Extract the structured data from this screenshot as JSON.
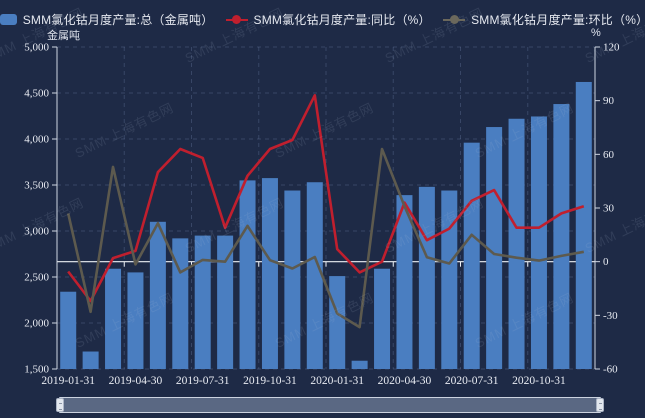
{
  "watermark_text": "SMM 上海有色网",
  "colors": {
    "background": "#1e2a46",
    "bar": "#4a7ec1",
    "yoy_line": "#c01f2e",
    "mom_line": "#5d5a4e",
    "mom_marker": "#6b685c",
    "grid_line": "rgba(125,145,185,0.28)",
    "axis_line": "#cfd6e2",
    "zero_line": "#edf0f5",
    "tick_text": "#e8ebf2",
    "legend_text": "#e6e9f0",
    "slider_fill": "rgba(101,115,142,0.85)",
    "slider_border": "#ccd3e0"
  },
  "legend": {
    "items": [
      {
        "label": "SMM氯化钴月度产量:总（金属吨）",
        "marker": "bar",
        "color": "#4a7ec1"
      },
      {
        "label": "SMM氯化钴月度产量:同比（%）",
        "marker": "line",
        "color": "#c01f2e"
      },
      {
        "label": "SMM氯化钴月度产量:环比（%）",
        "marker": "line",
        "color": "#6b685c"
      }
    ]
  },
  "chart_data": {
    "type": "bar",
    "combo": "bar+line",
    "title": "",
    "xlabel": "",
    "left_axis": {
      "name": "金属吨",
      "min": 1500,
      "max": 5000,
      "tick_step": 500,
      "tick_values": [
        5000,
        4500,
        4000,
        3500,
        3000,
        2500,
        2000,
        1500
      ],
      "tick_labels": [
        "5,000",
        "4,500",
        "4,000",
        "3,500",
        "3,000",
        "2,500",
        "2,000",
        "1,500"
      ]
    },
    "right_axis": {
      "name": "%",
      "min": -60,
      "max": 120,
      "tick_step": 30,
      "tick_values": [
        120,
        90,
        60,
        30,
        0,
        -30,
        -60
      ],
      "tick_labels": [
        "120",
        "90",
        "60",
        "30",
        "0",
        "-30",
        "-60"
      ]
    },
    "x": [
      "2019-01",
      "2019-02",
      "2019-03",
      "2019-04",
      "2019-05",
      "2019-06",
      "2019-07",
      "2019-08",
      "2019-09",
      "2019-10",
      "2019-11",
      "2019-12",
      "2020-01",
      "2020-02",
      "2020-03",
      "2020-04",
      "2020-05",
      "2020-06",
      "2020-07",
      "2020-08",
      "2020-09",
      "2020-10",
      "2020-11",
      "2020-12"
    ],
    "x_tick_labels": [
      "2019-01-31",
      "2019-04-30",
      "2019-07-31",
      "2019-10-31",
      "2020-01-31",
      "2020-04-30",
      "2020-07-31",
      "2020-10-31"
    ],
    "x_tick_indices": [
      0,
      3,
      6,
      9,
      12,
      15,
      18,
      21
    ],
    "grid": true,
    "legend_position": "top",
    "series": [
      {
        "name": "SMM氯化钴月度产量:总（金属吨）",
        "type": "bar",
        "axis": "left",
        "values": [
          2340,
          1690,
          2590,
          2550,
          3100,
          2920,
          2950,
          2950,
          3550,
          3575,
          3440,
          3530,
          2510,
          1590,
          2590,
          3390,
          3480,
          3440,
          3960,
          4130,
          4220,
          4245,
          4380,
          4620
        ]
      },
      {
        "name": "SMM氯化钴月度产量:同比（%）",
        "type": "line",
        "axis": "right",
        "values": [
          -5.5,
          -22,
          2,
          6,
          50,
          63,
          58,
          19,
          48,
          63,
          68,
          93,
          7,
          -6,
          0,
          33,
          12,
          18.5,
          34,
          40,
          19,
          19,
          27,
          31
        ]
      },
      {
        "name": "SMM氯化钴月度产量:环比（%）",
        "type": "line",
        "axis": "right",
        "values": [
          27,
          -28,
          53,
          -1.5,
          21.5,
          -6,
          1,
          0,
          20,
          0.8,
          -3.8,
          2.6,
          -29,
          -36.6,
          63,
          31,
          2.5,
          -1,
          15,
          4.3,
          2.2,
          0.6,
          3.2,
          5.5
        ]
      }
    ]
  },
  "datazoom": {
    "range_start": "2019-01-31",
    "range_end": "2020-12-31"
  }
}
